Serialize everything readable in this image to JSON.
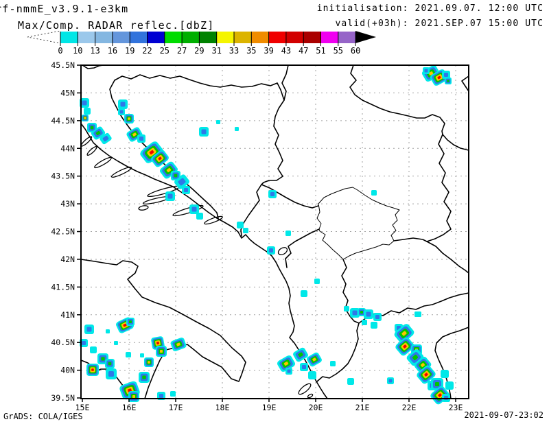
{
  "header": {
    "model_title": "rf-nmmE_v3.9.1-e3km",
    "product_title": "Max/Comp. RADAR reflec.[dbZ]",
    "init_line": "initialisation: 2021.09.07. 12:00 UTC",
    "valid_line": "valid(+03h): 2021.SEP.07 15:00 UTC"
  },
  "colorbar": {
    "tick_labels": [
      "0",
      "10",
      "13",
      "16",
      "19",
      "22",
      "25",
      "27",
      "29",
      "31",
      "33",
      "35",
      "39",
      "43",
      "47",
      "51",
      "55",
      "60"
    ],
    "segment_colors": [
      "#00E6E6",
      "#9BC8EB",
      "#84B7E1",
      "#6496DC",
      "#3273DC",
      "#0000D2",
      "#00DC00",
      "#00AF00",
      "#008200",
      "#F5F500",
      "#DCB400",
      "#F08C00",
      "#F00000",
      "#D20000",
      "#AA0000",
      "#F000F0",
      "#9664C8"
    ],
    "arrow_right_color": "#000000"
  },
  "map": {
    "lat_labels": [
      "45.5N",
      "45N",
      "44.5N",
      "44N",
      "43.5N",
      "43N",
      "42.5N",
      "42N",
      "41.5N",
      "41N",
      "40.5N",
      "40N",
      "39.5N"
    ],
    "lon_labels": [
      "15E",
      "16E",
      "17E",
      "18E",
      "19E",
      "20E",
      "21E",
      "22E",
      "23E"
    ],
    "grid_color": "#a0a0a0",
    "border_color": "#000000"
  },
  "echo_palette": {
    "level_names": [
      "cyan",
      "blue",
      "green",
      "yellow",
      "red"
    ],
    "colors": [
      "#00E8E8",
      "#2E78E8",
      "#00C800",
      "#FFC300",
      "#F00000"
    ]
  },
  "echoes": [
    [
      123,
      150,
      7,
      2,
      1,
      0
    ],
    [
      127,
      162,
      5,
      1,
      1,
      0
    ],
    [
      124,
      172,
      5,
      4,
      1,
      0
    ],
    [
      134,
      186,
      7,
      3,
      1,
      0
    ],
    [
      143,
      194,
      7,
      3,
      1.3,
      -35
    ],
    [
      154,
      202,
      6,
      2,
      1.3,
      -35
    ],
    [
      179,
      152,
      7,
      2,
      1,
      0
    ],
    [
      177,
      163,
      5,
      2,
      1,
      0
    ],
    [
      188,
      173,
      7,
      4,
      1,
      0
    ],
    [
      196,
      196,
      8,
      4,
      1.3,
      -30
    ],
    [
      206,
      202,
      6,
      2,
      1,
      0
    ],
    [
      221,
      222,
      11,
      5,
      1.4,
      -38
    ],
    [
      233,
      231,
      9,
      5,
      1.3,
      -38
    ],
    [
      246,
      248,
      9,
      4,
      1.3,
      -38
    ],
    [
      256,
      256,
      7,
      3,
      1,
      0
    ],
    [
      265,
      265,
      8,
      2,
      1.2,
      -38
    ],
    [
      271,
      277,
      6,
      2,
      1,
      0
    ],
    [
      248,
      286,
      7,
      2,
      1,
      0
    ],
    [
      283,
      305,
      7,
      2,
      1,
      0
    ],
    [
      291,
      315,
      5,
      1,
      1,
      0
    ],
    [
      297,
      192,
      7,
      2,
      1,
      0
    ],
    [
      318,
      178,
      3,
      1,
      1,
      0
    ],
    [
      345,
      188,
      3,
      1,
      1,
      0
    ],
    [
      350,
      328,
      5,
      1,
      1,
      0
    ],
    [
      358,
      336,
      4,
      1,
      1,
      0
    ],
    [
      397,
      283,
      6,
      2,
      1,
      0
    ],
    [
      545,
      281,
      4,
      1,
      1,
      0
    ],
    [
      420,
      340,
      4,
      1,
      1,
      0
    ],
    [
      395,
      365,
      6,
      2,
      1,
      0
    ],
    [
      443,
      428,
      5,
      1,
      1,
      0
    ],
    [
      462,
      410,
      4,
      1,
      1,
      0
    ],
    [
      628,
      107,
      9,
      4,
      1.3,
      -30
    ],
    [
      640,
      113,
      9,
      5,
      1.3,
      -30
    ],
    [
      650,
      109,
      6,
      2,
      1,
      0
    ],
    [
      653,
      118,
      5,
      3,
      1,
      0
    ],
    [
      621,
      103,
      5,
      2,
      1,
      0
    ],
    [
      182,
      474,
      9,
      5,
      1.3,
      -25
    ],
    [
      190,
      469,
      6,
      3,
      1,
      0
    ],
    [
      130,
      480,
      7,
      2,
      1,
      0
    ],
    [
      122,
      500,
      6,
      2,
      1,
      0
    ],
    [
      136,
      510,
      5,
      1,
      1,
      0
    ],
    [
      157,
      483,
      3,
      1,
      1,
      0
    ],
    [
      150,
      523,
      8,
      3,
      1,
      0
    ],
    [
      160,
      530,
      7,
      3,
      1,
      0
    ],
    [
      135,
      539,
      9,
      5,
      1,
      0
    ],
    [
      162,
      545,
      8,
      2,
      1,
      0
    ],
    [
      189,
      569,
      11,
      5,
      1.2,
      -20
    ],
    [
      195,
      578,
      8,
      4,
      1,
      0
    ],
    [
      210,
      550,
      8,
      3,
      1,
      0
    ],
    [
      217,
      528,
      7,
      4,
      1,
      0
    ],
    [
      230,
      500,
      9,
      5,
      1,
      -10
    ],
    [
      235,
      512,
      8,
      4,
      1,
      0
    ],
    [
      260,
      502,
      8,
      4,
      1.3,
      -20
    ],
    [
      187,
      517,
      4,
      1,
      1,
      0
    ],
    [
      207,
      518,
      3,
      1,
      1,
      0
    ],
    [
      169,
      500,
      3,
      1,
      1,
      0
    ],
    [
      235,
      577,
      6,
      2,
      1,
      0
    ],
    [
      252,
      574,
      4,
      1,
      1,
      0
    ],
    [
      417,
      530,
      9,
      4,
      1.3,
      -30
    ],
    [
      438,
      517,
      8,
      3,
      1.2,
      -30
    ],
    [
      458,
      524,
      8,
      4,
      1.2,
      -30
    ],
    [
      443,
      535,
      6,
      2,
      1,
      0
    ],
    [
      421,
      541,
      5,
      2,
      1,
      0
    ],
    [
      455,
      547,
      6,
      1,
      1,
      0
    ],
    [
      511,
      556,
      5,
      1,
      1,
      0
    ],
    [
      569,
      555,
      5,
      2,
      1,
      0
    ],
    [
      485,
      530,
      4,
      1,
      1,
      0
    ],
    [
      517,
      456,
      7,
      2,
      1,
      0
    ],
    [
      527,
      455,
      6,
      3,
      1,
      0
    ],
    [
      537,
      458,
      7,
      2,
      1,
      0
    ],
    [
      550,
      462,
      6,
      2,
      1,
      0
    ],
    [
      545,
      474,
      5,
      1,
      1,
      0
    ],
    [
      505,
      450,
      4,
      1,
      1,
      0
    ],
    [
      610,
      458,
      4,
      1,
      1,
      0
    ],
    [
      531,
      470,
      4,
      1,
      1,
      0
    ],
    [
      581,
      478,
      6,
      2,
      1,
      0
    ],
    [
      589,
      486,
      10,
      4,
      1.3,
      -40
    ],
    [
      590,
      505,
      10,
      5,
      1.2,
      -40
    ],
    [
      607,
      510,
      8,
      4,
      1,
      0
    ],
    [
      605,
      521,
      9,
      3,
      1.2,
      -40
    ],
    [
      616,
      532,
      9,
      4,
      1.2,
      -40
    ],
    [
      621,
      546,
      10,
      5,
      1.2,
      -40
    ],
    [
      630,
      562,
      7,
      2,
      1,
      0
    ],
    [
      637,
      560,
      9,
      3,
      1,
      0
    ],
    [
      641,
      576,
      10,
      5,
      1.2,
      -40
    ],
    [
      608,
      458,
      4,
      1,
      1,
      0
    ],
    [
      648,
      545,
      6,
      1,
      1,
      0
    ],
    [
      655,
      562,
      6,
      1,
      1,
      0
    ],
    [
      650,
      580,
      6,
      2,
      1,
      0
    ]
  ],
  "footer": {
    "credit": "GrADS: COLA/IGES",
    "timestamp": "2021-09-07-23:02"
  }
}
